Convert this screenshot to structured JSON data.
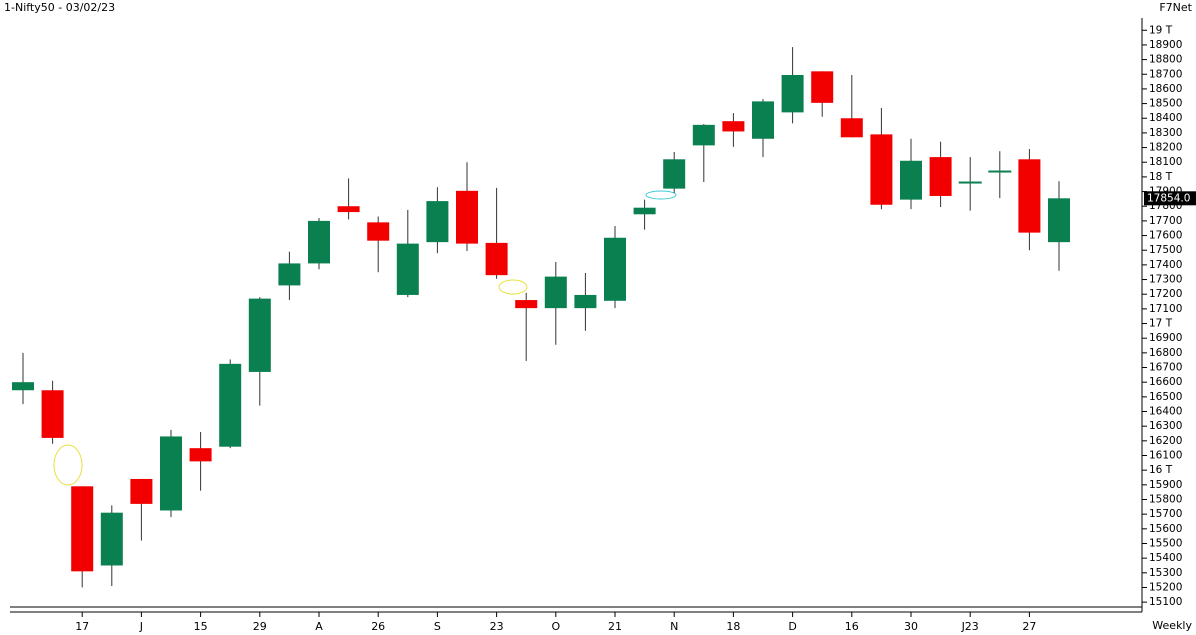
{
  "chart_data": {
    "type": "candlestick",
    "title": "1-Nifty50 - 03/02/23",
    "source": "F7Net",
    "period": "Weekly",
    "categories": [
      null,
      null,
      "17",
      null,
      "J",
      null,
      "15",
      null,
      "29",
      null,
      "A",
      null,
      "26",
      null,
      "S",
      null,
      "23",
      null,
      "O",
      null,
      "21",
      null,
      "N",
      null,
      "18",
      null,
      "D",
      null,
      "16",
      null,
      "30",
      null,
      "J23",
      null,
      "27",
      null
    ],
    "open": [
      16545,
      16545,
      15890,
      15350,
      15940,
      15725,
      16150,
      16160,
      16670,
      17260,
      17410,
      17800,
      17690,
      17195,
      17555,
      17905,
      17550,
      17160,
      17105,
      17105,
      17155,
      17745,
      17920,
      18215,
      18380,
      18260,
      18440,
      18720,
      18400,
      18290,
      17845,
      18135,
      17965,
      18040,
      18120,
      17555
    ],
    "high": [
      16800,
      16610,
      15890,
      15760,
      15940,
      16275,
      16260,
      16755,
      17180,
      17490,
      17720,
      17990,
      17730,
      17775,
      17930,
      18100,
      17925,
      17210,
      17420,
      17345,
      17665,
      17845,
      18170,
      18360,
      18435,
      18530,
      18885,
      18720,
      18695,
      18470,
      18260,
      18240,
      18135,
      18175,
      18190,
      17970
    ],
    "low": [
      16450,
      16180,
      15200,
      15210,
      15520,
      15680,
      15860,
      16150,
      16440,
      17160,
      17370,
      17710,
      17350,
      17180,
      17480,
      17495,
      17305,
      16745,
      16855,
      16950,
      17105,
      17640,
      17890,
      17965,
      18205,
      18135,
      18365,
      18410,
      18270,
      17780,
      17780,
      17795,
      17770,
      17855,
      17500,
      17360
    ],
    "close": [
      16600,
      16220,
      15310,
      15710,
      15770,
      16230,
      16060,
      16725,
      17170,
      17410,
      17700,
      17760,
      17565,
      17545,
      17835,
      17545,
      17330,
      17105,
      17320,
      17195,
      17585,
      17790,
      18120,
      18355,
      18310,
      18515,
      18695,
      18505,
      18270,
      17810,
      18110,
      17870,
      17965,
      18040,
      17620,
      17854
    ],
    "last_label": "17854.0",
    "up_color": "#0a8050",
    "down_color": "#f20000",
    "wick_color": "#333333",
    "ylim": [
      15060,
      19070
    ],
    "yticks": [
      15100,
      15200,
      15300,
      15400,
      15500,
      15600,
      15700,
      15800,
      15900,
      {
        "value": 16000,
        "label": "16 T"
      },
      16100,
      16200,
      16300,
      16400,
      16500,
      16600,
      16700,
      16800,
      16900,
      {
        "value": 17000,
        "label": "17 T"
      },
      17100,
      17200,
      17300,
      17400,
      17500,
      17600,
      17700,
      17800,
      17900,
      {
        "value": 18000,
        "label": "18 T"
      },
      18100,
      18200,
      18300,
      18400,
      18500,
      18600,
      18700,
      18800,
      18900,
      {
        "value": 19000,
        "label": "19 T"
      }
    ]
  }
}
